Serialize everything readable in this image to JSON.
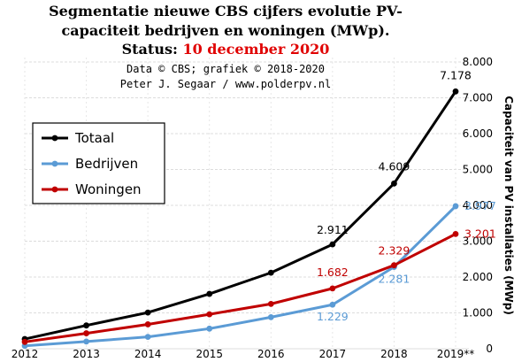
{
  "chart_data": {
    "type": "line",
    "title_line1": "Segmentatie nieuwe CBS cijfers evolutie PV-",
    "title_line2": "capaciteit bedrijven en woningen (MWp).",
    "title_status": "Status:",
    "title_date": "10 december 2020",
    "credit_line1": "Data © CBS; grafiek © 2018-2020",
    "credit_line2": "Peter J. Segaar / www.polderpv.nl",
    "ylabel": "Capaciteit van PV installaties (MWp)",
    "categories": [
      "2012",
      "2013",
      "2014",
      "2015",
      "2016",
      "2017",
      "2018",
      "2019**"
    ],
    "ylim": [
      0,
      8000
    ],
    "yticks": [
      "0",
      "1.000",
      "2.000",
      "3.000",
      "4.000",
      "5.000",
      "6.000",
      "7.000",
      "8.000"
    ],
    "grid": true,
    "legend_position": "left",
    "series": [
      {
        "name": "Totaal",
        "color": "#000000",
        "values": [
          270,
          650,
          1010,
          1530,
          2120,
          2911,
          4609,
          7178
        ]
      },
      {
        "name": "Bedrijven",
        "color": "#5b9bd5",
        "values": [
          80,
          200,
          330,
          560,
          880,
          1229,
          2281,
          3977
        ]
      },
      {
        "name": "Woningen",
        "color": "#c00000",
        "values": [
          190,
          430,
          680,
          960,
          1250,
          1682,
          2329,
          3201
        ]
      }
    ],
    "data_labels": [
      {
        "series": 0,
        "index": 5,
        "text": "2.911"
      },
      {
        "series": 0,
        "index": 6,
        "text": "4.609"
      },
      {
        "series": 0,
        "index": 7,
        "text": "7.178"
      },
      {
        "series": 1,
        "index": 5,
        "text": "1.229"
      },
      {
        "series": 1,
        "index": 6,
        "text": "2.281"
      },
      {
        "series": 1,
        "index": 7,
        "text": "3.977"
      },
      {
        "series": 2,
        "index": 5,
        "text": "1.682"
      },
      {
        "series": 2,
        "index": 6,
        "text": "2.329"
      },
      {
        "series": 2,
        "index": 7,
        "text": "3.201"
      }
    ]
  }
}
